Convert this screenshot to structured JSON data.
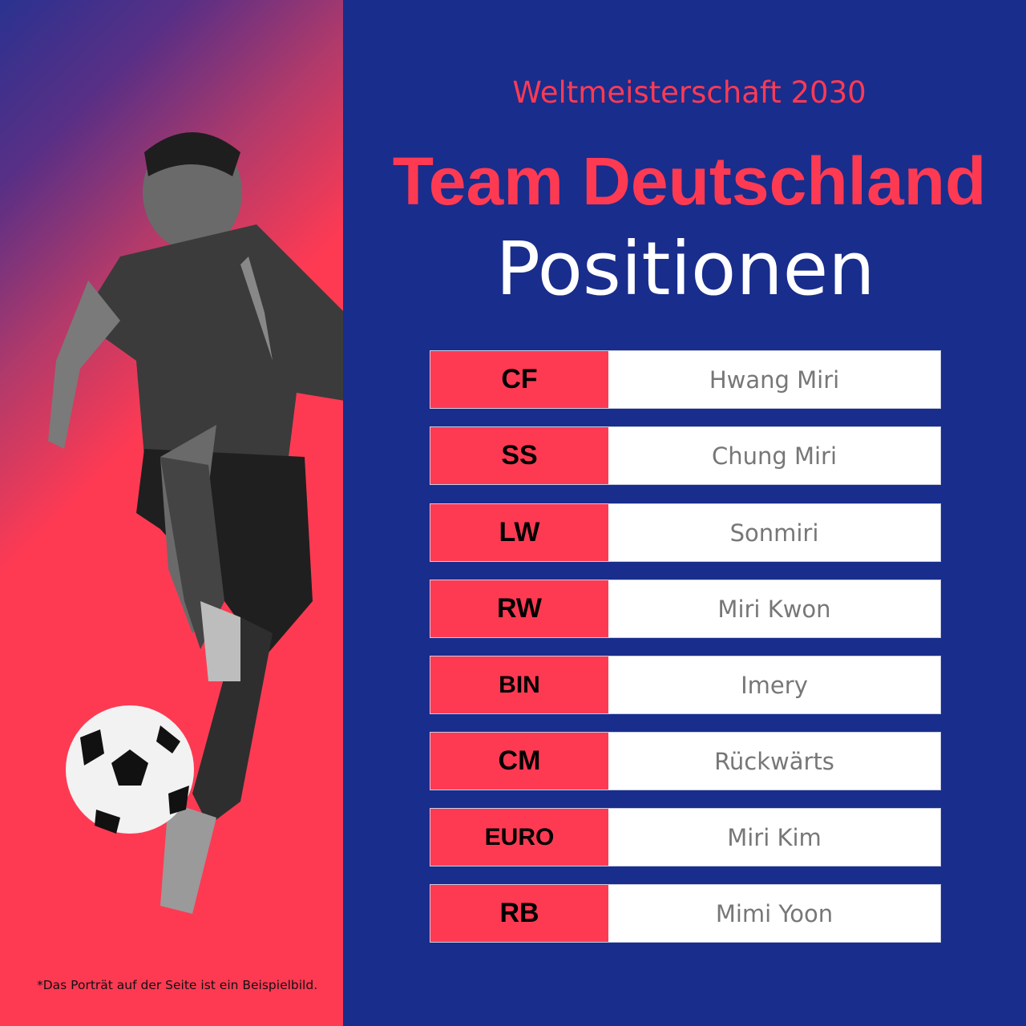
{
  "subtitle": "Weltmeisterschaft 2030",
  "title": "Team Deutschland",
  "heading": "Positionen",
  "footnote": "*Das Porträt auf der Seite ist ein Beispielbild.",
  "colors": {
    "red": "#fe3a53",
    "blue": "#192d8c",
    "white": "#ffffff"
  },
  "positions": [
    {
      "code": "CF",
      "name": "Hwang Miri"
    },
    {
      "code": "SS",
      "name": "Chung Miri"
    },
    {
      "code": "LW",
      "name": "Sonmiri"
    },
    {
      "code": "RW",
      "name": "Miri Kwon"
    },
    {
      "code": "BIN",
      "name": "Imery"
    },
    {
      "code": "CM",
      "name": "Rückwärts"
    },
    {
      "code": "EURO",
      "name": "Miri Kim"
    },
    {
      "code": "RB",
      "name": "Mimi Yoon"
    }
  ]
}
